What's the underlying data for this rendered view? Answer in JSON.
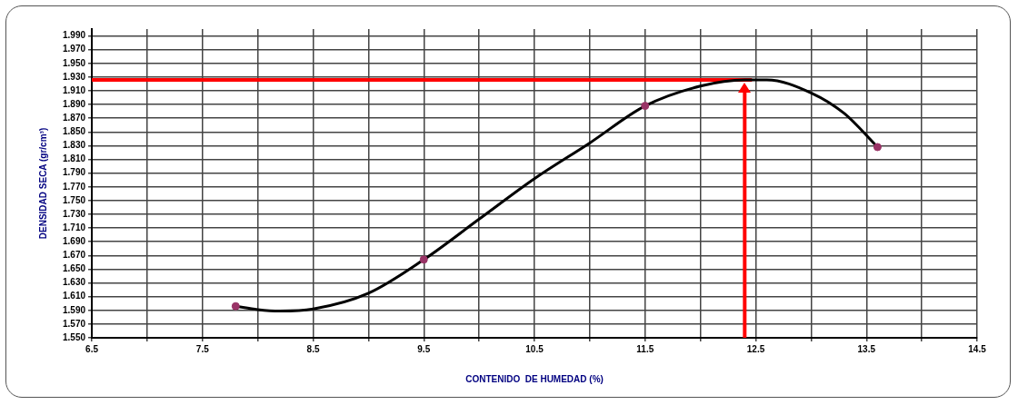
{
  "chart_data": {
    "type": "scatter",
    "xlabel": "CONTENIDO  DE HUMEDAD (%)",
    "ylabel": "DENSIDAD SECA (gr/cm³)",
    "series": [
      {
        "type": "line",
        "color": "#000000",
        "marker": "none",
        "x": [
          7.8,
          8.0,
          8.2,
          8.5,
          9.0,
          9.5,
          10.0,
          10.5,
          11.0,
          11.5,
          12.0,
          12.4,
          12.6,
          13.0,
          13.3,
          13.6
        ],
        "values": [
          1.596,
          1.591,
          1.589,
          1.592,
          1.615,
          1.664,
          1.723,
          1.782,
          1.834,
          1.888,
          1.917,
          1.926,
          1.926,
          1.907,
          1.877,
          1.828
        ]
      },
      {
        "type": "scatter",
        "color": "#993366",
        "marker": "circle",
        "x": [
          7.8,
          9.5,
          11.5,
          13.6
        ],
        "values": [
          1.596,
          1.664,
          1.888,
          1.828
        ]
      }
    ],
    "xlim": [
      6.5,
      14.5
    ],
    "xticks": [
      6.5,
      {
        "value": 7,
        "label": null
      },
      7.5,
      {
        "value": 8,
        "label": null
      },
      8.5,
      {
        "value": 9,
        "label": null
      },
      9.5,
      {
        "value": 10,
        "label": null
      },
      10.5,
      {
        "value": 11,
        "label": null
      },
      11.5,
      {
        "value": 12,
        "label": null
      },
      12.5,
      {
        "value": 13,
        "label": null
      },
      13.5,
      {
        "value": 14,
        "label": null
      },
      14.5
    ],
    "ylim": [
      1.55,
      2.0
    ],
    "yticks": [
      {
        "value": 1.55,
        "label": "1.550"
      },
      {
        "value": 1.57,
        "label": "1.570"
      },
      {
        "value": 1.59,
        "label": "1.590"
      },
      {
        "value": 1.61,
        "label": "1.610"
      },
      {
        "value": 1.63,
        "label": "1.630"
      },
      {
        "value": 1.65,
        "label": "1.650"
      },
      {
        "value": 1.67,
        "label": "1.670"
      },
      {
        "value": 1.69,
        "label": "1.690"
      },
      {
        "value": 1.71,
        "label": "1.710"
      },
      {
        "value": 1.73,
        "label": "1.730"
      },
      {
        "value": 1.75,
        "label": "1.750"
      },
      {
        "value": 1.77,
        "label": "1.770"
      },
      {
        "value": 1.79,
        "label": "1.790"
      },
      {
        "value": 1.81,
        "label": "1.810"
      },
      {
        "value": 1.83,
        "label": "1.830"
      },
      {
        "value": 1.85,
        "label": "1.850"
      },
      {
        "value": 1.87,
        "label": "1.870"
      },
      {
        "value": 1.89,
        "label": "1.890"
      },
      {
        "value": 1.91,
        "label": "1.910"
      },
      {
        "value": 1.93,
        "label": "1.930"
      },
      {
        "value": 1.95,
        "label": "1.950"
      },
      {
        "value": 1.97,
        "label": "1.970"
      },
      {
        "value": 1.99,
        "label": "1.990"
      }
    ],
    "ref_lines": [
      {
        "axis": "y",
        "value": 1.926,
        "color": "#ff0000"
      },
      {
        "axis": "x",
        "value": 12.4,
        "color": "#ff0000"
      }
    ],
    "grid": true,
    "legend": false
  }
}
